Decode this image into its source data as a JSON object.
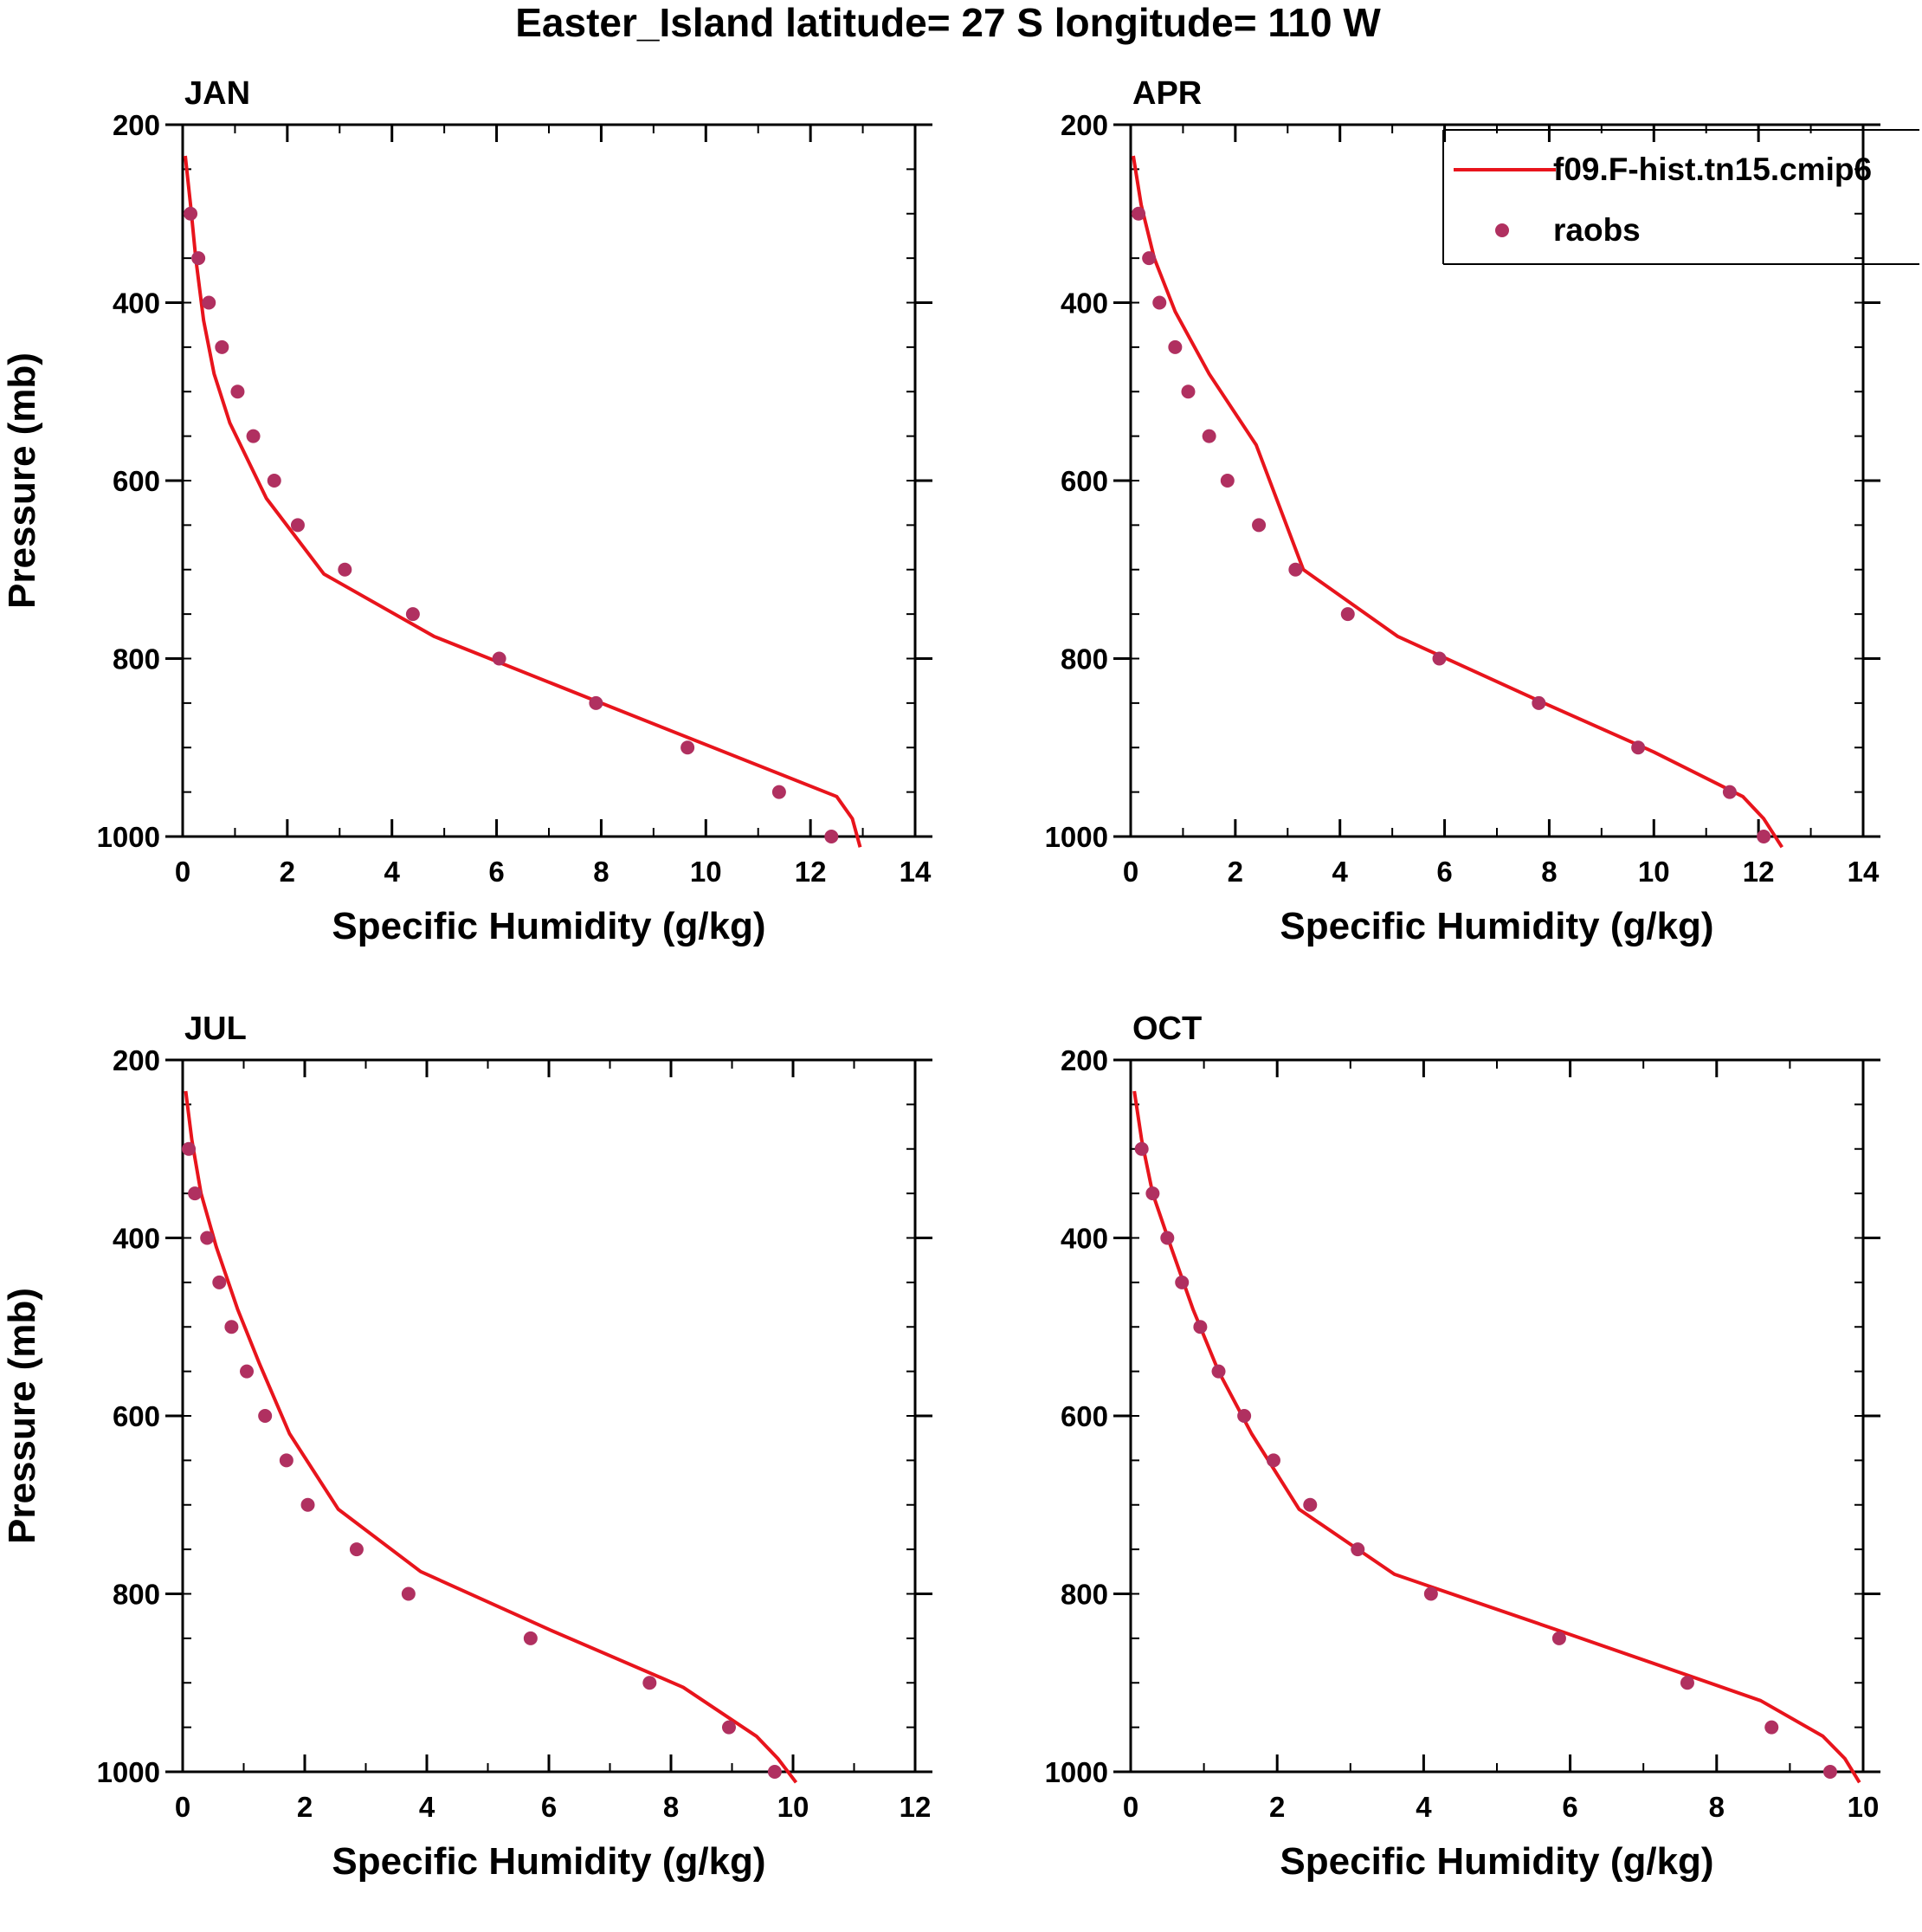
{
  "figure": {
    "title": "Easter_Island  latitude= 27 S longitude= 110 W"
  },
  "legend": {
    "model_label": "f09.F-hist.tn15.cmip6",
    "obs_label": "raobs"
  },
  "colors": {
    "model_line": "#e8141c",
    "obs_marker": "#b03060",
    "axes": "#000000"
  },
  "chart_data": [
    {
      "type": "line",
      "panel": "JAN",
      "title": "JAN",
      "xlabel": "Specific Humidity (g/kg)",
      "ylabel": "Pressure (mb)",
      "xlim": [
        0,
        14
      ],
      "ylim": [
        200,
        1000
      ],
      "y_inverted": true,
      "x_ticks": [
        0,
        2,
        4,
        6,
        8,
        10,
        12,
        14
      ],
      "y_ticks": [
        200,
        400,
        600,
        800,
        1000
      ],
      "series": [
        {
          "name": "f09.F-hist.tn15.cmip6",
          "style": "line",
          "x": [
            0.05,
            0.15,
            0.25,
            0.4,
            0.6,
            0.9,
            1.6,
            2.7,
            4.8,
            8.0,
            12.5,
            12.8,
            12.95
          ],
          "y": [
            235,
            290,
            350,
            420,
            480,
            535,
            620,
            705,
            775,
            850,
            955,
            980,
            1012
          ]
        },
        {
          "name": "raobs",
          "style": "markers",
          "x": [
            0.15,
            0.3,
            0.5,
            0.75,
            1.05,
            1.35,
            1.75,
            2.2,
            3.1,
            4.4,
            6.05,
            7.9,
            9.65,
            11.4,
            12.4
          ],
          "y": [
            300,
            350,
            400,
            450,
            500,
            550,
            600,
            650,
            700,
            750,
            800,
            850,
            900,
            950,
            1000
          ]
        }
      ]
    },
    {
      "type": "line",
      "panel": "APR",
      "title": "APR",
      "xlabel": "Specific Humidity (g/kg)",
      "ylabel": "",
      "xlim": [
        0,
        14
      ],
      "ylim": [
        200,
        1000
      ],
      "y_inverted": true,
      "x_ticks": [
        0,
        2,
        4,
        6,
        8,
        10,
        12,
        14
      ],
      "y_ticks": [
        200,
        400,
        600,
        800,
        1000
      ],
      "legend_position": "top-right",
      "series": [
        {
          "name": "f09.F-hist.tn15.cmip6",
          "style": "line",
          "x": [
            0.05,
            0.2,
            0.45,
            0.85,
            1.5,
            2.4,
            3.3,
            5.1,
            7.9,
            10.0,
            11.7,
            12.1,
            12.45
          ],
          "y": [
            235,
            290,
            350,
            410,
            480,
            560,
            700,
            775,
            850,
            905,
            955,
            980,
            1012
          ]
        },
        {
          "name": "raobs",
          "style": "markers",
          "x": [
            0.15,
            0.35,
            0.55,
            0.85,
            1.1,
            1.5,
            1.85,
            2.45,
            3.15,
            4.15,
            5.9,
            7.8,
            9.7,
            11.45,
            12.1
          ],
          "y": [
            300,
            350,
            400,
            450,
            500,
            550,
            600,
            650,
            700,
            750,
            800,
            850,
            900,
            950,
            1000
          ]
        }
      ]
    },
    {
      "type": "line",
      "panel": "JUL",
      "title": "JUL",
      "xlabel": "Specific Humidity (g/kg)",
      "ylabel": "Pressure (mb)",
      "xlim": [
        0,
        12
      ],
      "ylim": [
        200,
        1000
      ],
      "y_inverted": true,
      "x_ticks": [
        0,
        2,
        4,
        6,
        8,
        10,
        12
      ],
      "y_ticks": [
        200,
        400,
        600,
        800,
        1000
      ],
      "series": [
        {
          "name": "f09.F-hist.tn15.cmip6",
          "style": "line",
          "x": [
            0.05,
            0.15,
            0.3,
            0.55,
            0.9,
            1.25,
            1.75,
            2.55,
            3.9,
            6.0,
            8.2,
            9.4,
            9.75,
            10.05
          ],
          "y": [
            235,
            290,
            350,
            410,
            480,
            540,
            620,
            705,
            775,
            840,
            905,
            960,
            985,
            1012
          ]
        },
        {
          "name": "raobs",
          "style": "markers",
          "x": [
            0.1,
            0.2,
            0.4,
            0.6,
            0.8,
            1.05,
            1.35,
            1.7,
            2.05,
            2.85,
            3.7,
            5.7,
            7.65,
            8.95,
            9.7
          ],
          "y": [
            300,
            350,
            400,
            450,
            500,
            550,
            600,
            650,
            700,
            750,
            800,
            850,
            900,
            950,
            1000
          ]
        }
      ]
    },
    {
      "type": "line",
      "panel": "OCT",
      "title": "OCT",
      "xlabel": "Specific Humidity (g/kg)",
      "ylabel": "",
      "xlim": [
        0,
        10
      ],
      "ylim": [
        200,
        1000
      ],
      "y_inverted": true,
      "x_ticks": [
        0,
        2,
        4,
        6,
        8,
        10
      ],
      "y_ticks": [
        200,
        400,
        600,
        800,
        1000
      ],
      "series": [
        {
          "name": "f09.F-hist.tn15.cmip6",
          "style": "line",
          "x": [
            0.05,
            0.15,
            0.3,
            0.55,
            0.85,
            1.2,
            1.65,
            2.3,
            3.6,
            5.8,
            8.6,
            9.45,
            9.75,
            9.95
          ],
          "y": [
            235,
            290,
            350,
            410,
            480,
            550,
            620,
            705,
            778,
            840,
            920,
            960,
            985,
            1012
          ]
        },
        {
          "name": "raobs",
          "style": "markers",
          "x": [
            0.15,
            0.3,
            0.5,
            0.7,
            0.95,
            1.2,
            1.55,
            1.95,
            2.45,
            3.1,
            4.1,
            5.85,
            7.6,
            8.75,
            9.55
          ],
          "y": [
            300,
            350,
            400,
            450,
            500,
            550,
            600,
            650,
            700,
            750,
            800,
            850,
            900,
            950,
            1000
          ]
        }
      ]
    }
  ]
}
